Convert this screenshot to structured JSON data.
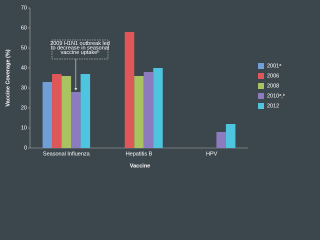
{
  "chart_data": {
    "type": "bar",
    "y_label": "Vaccine Coverage (%)",
    "x_label": "Vaccine",
    "categories": [
      "Seasonal Influenza",
      "Hepatitis B",
      "HPV"
    ],
    "series": [
      {
        "name": "2001ᵃ",
        "color": "#6f9fd6",
        "values": [
          33,
          null,
          null
        ]
      },
      {
        "name": "2006",
        "color": "#e0575a",
        "values": [
          37,
          58,
          null
        ]
      },
      {
        "name": "2008",
        "color": "#a9c262",
        "values": [
          36,
          36,
          null
        ]
      },
      {
        "name": "2010ᵃ,ᵇ",
        "color": "#8c7bbf",
        "values": [
          28,
          38,
          8
        ]
      },
      {
        "name": "2012",
        "color": "#4fc4df",
        "values": [
          37,
          40,
          12
        ]
      }
    ],
    "ylim": [
      0,
      70
    ],
    "yticks": [
      0,
      10,
      20,
      30,
      40,
      50,
      60,
      70
    ],
    "annotation": "2009 H1N1 outbreak led to decrease in seasonal vaccine uptakeᵇ",
    "legend": "right"
  }
}
